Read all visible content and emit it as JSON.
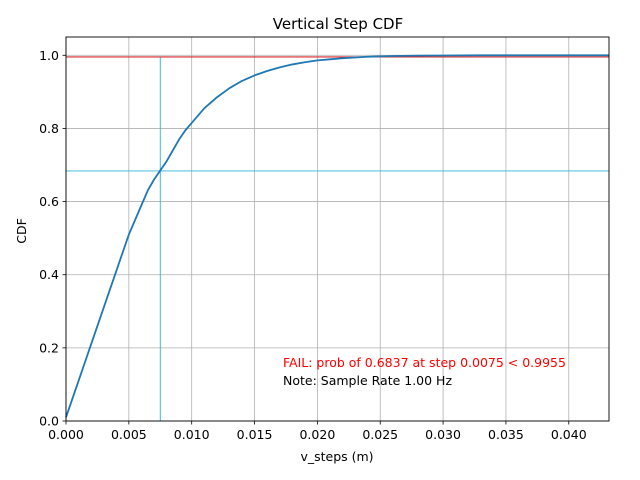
{
  "chart_data": {
    "type": "line",
    "title": "Vertical Step CDF",
    "xlabel": "v_steps (m)",
    "ylabel": "CDF",
    "xlim": [
      0,
      0.0432
    ],
    "ylim": [
      0,
      1.05
    ],
    "x_ticks": [
      "0.000",
      "0.005",
      "0.010",
      "0.015",
      "0.020",
      "0.025",
      "0.030",
      "0.035",
      "0.040"
    ],
    "y_ticks": [
      "0.0",
      "0.2",
      "0.4",
      "0.6",
      "0.8",
      "1.0"
    ],
    "grid": true,
    "series": [
      {
        "color": "#1f77b4",
        "x": [
          0.0,
          0.0005,
          0.001,
          0.0015,
          0.002,
          0.0025,
          0.003,
          0.0035,
          0.004,
          0.0045,
          0.005,
          0.0055,
          0.006,
          0.0065,
          0.007,
          0.0075,
          0.008,
          0.0085,
          0.009,
          0.0095,
          0.01,
          0.011,
          0.012,
          0.013,
          0.014,
          0.015,
          0.016,
          0.017,
          0.018,
          0.019,
          0.02,
          0.021,
          0.022,
          0.024,
          0.026,
          0.028,
          0.03,
          0.033,
          0.036,
          0.04,
          0.0432
        ],
        "y": [
          0.01,
          0.06,
          0.11,
          0.16,
          0.21,
          0.26,
          0.31,
          0.36,
          0.41,
          0.46,
          0.51,
          0.55,
          0.59,
          0.63,
          0.66,
          0.685,
          0.71,
          0.74,
          0.77,
          0.795,
          0.815,
          0.855,
          0.885,
          0.91,
          0.93,
          0.945,
          0.957,
          0.967,
          0.975,
          0.981,
          0.986,
          0.989,
          0.992,
          0.996,
          0.998,
          0.999,
          0.9995,
          1.0,
          1.0,
          1.0,
          1.0
        ]
      }
    ],
    "threshold_line": {
      "y": 0.9955,
      "color": "#d62728"
    },
    "marker_lines": {
      "x": 0.0075,
      "y": 0.6837,
      "color": "#2ab6d8"
    },
    "annotations": [
      {
        "text": "FAIL: prob of 0.6837 at step 0.0075 < 0.9955",
        "color": "#ff0000"
      },
      {
        "text": "Note: Sample Rate 1.00 Hz",
        "color": "#000000"
      }
    ]
  }
}
